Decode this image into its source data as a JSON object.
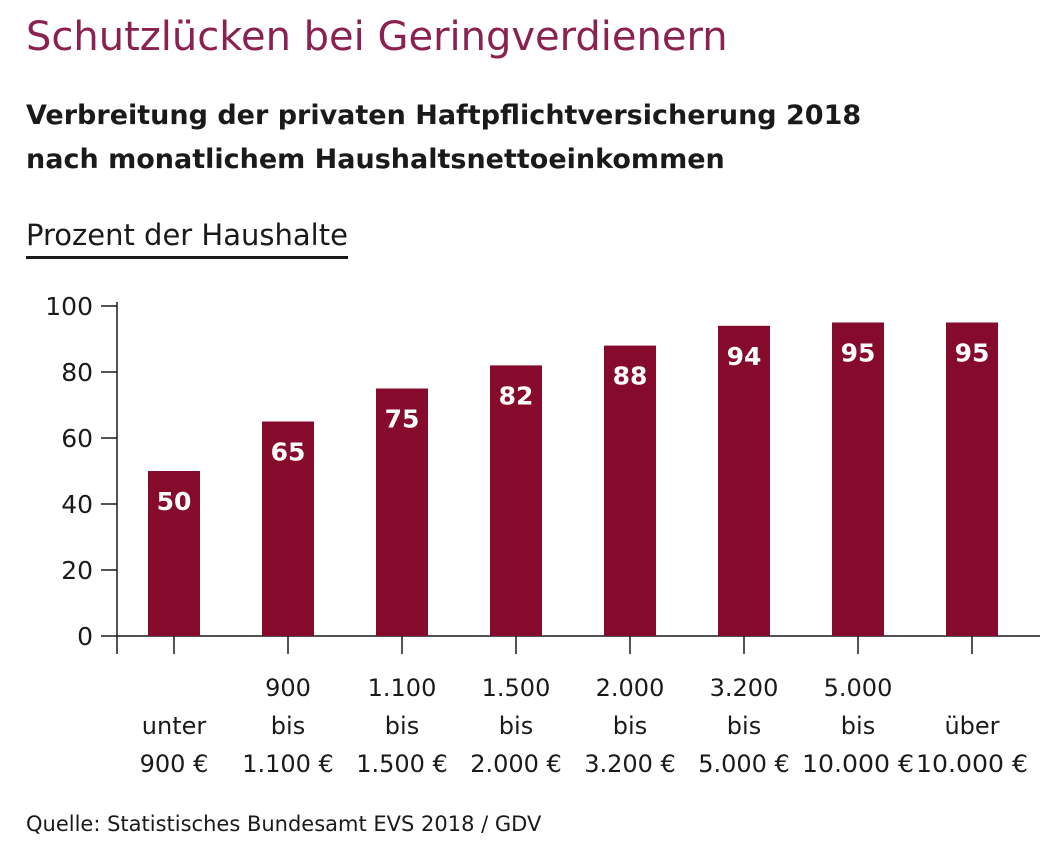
{
  "chart_data": {
    "type": "bar",
    "title": "Schutzlücken bei Geringverdienern",
    "subtitle_lines": [
      "Verbreitung der privaten Haftpflichtversicherung 2018",
      "nach monatlichem Haushaltsnettoeinkommen"
    ],
    "ylabel": "Prozent der Haushalte",
    "ylim": [
      0,
      100
    ],
    "yticks": [
      0,
      20,
      40,
      60,
      80,
      100
    ],
    "categories": [
      [
        "unter",
        "900 €"
      ],
      [
        "900",
        "bis",
        "1.100 €"
      ],
      [
        "1.100",
        "bis",
        "1.500 €"
      ],
      [
        "1.500",
        "bis",
        "2.000 €"
      ],
      [
        "2.000",
        "bis",
        "3.200 €"
      ],
      [
        "3.200",
        "bis",
        "5.000 €"
      ],
      [
        "5.000",
        "bis",
        "10.000 €"
      ],
      [
        "über",
        "10.000 €"
      ]
    ],
    "values": [
      50,
      65,
      75,
      82,
      88,
      94,
      95,
      95
    ],
    "bar_color": "#850a2c",
    "source": "Quelle: Statistisches Bundesamt EVS 2018 / GDV"
  }
}
